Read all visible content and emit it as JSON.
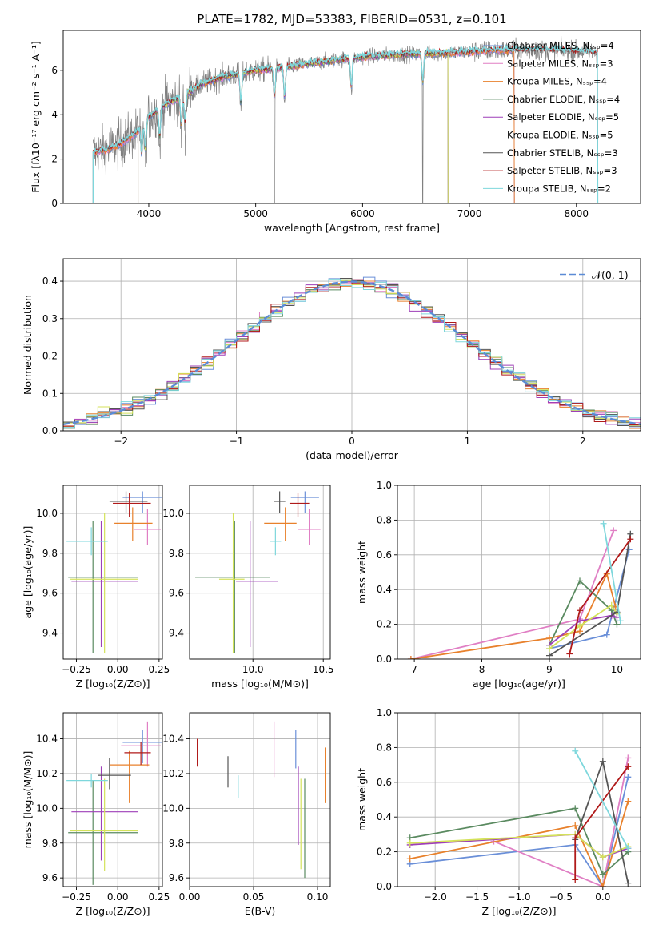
{
  "suptitle": "PLATE=1782, MJD=53383, FIBERID=0531, z=0.101",
  "colors": {
    "chabrier_miles": "#6a8fd8",
    "salpeter_miles": "#e07fc4",
    "kroupa_miles": "#e8812c",
    "chabrier_elodie": "#5a8a60",
    "salpeter_elodie": "#9e3fb8",
    "kroupa_elodie": "#d4e25a",
    "chabrier_stelib": "#555555",
    "salpeter_stelib": "#b01a1a",
    "kroupa_stelib": "#7ed7dc",
    "observed": "#808080",
    "normal_curve": "#5b8bd6",
    "grid": "#b0b0b0"
  },
  "chart_data": [
    {
      "id": "spectrum",
      "type": "line",
      "xlabel": "wavelength [Angstrom, rest frame]",
      "ylabel": "Flux [fλ10⁻¹⁷ erg cm⁻² s⁻¹ A⁻¹]",
      "xlim": [
        3200,
        8600
      ],
      "ylim": [
        0,
        7.8
      ],
      "xticks": [
        4000,
        5000,
        6000,
        7000,
        8000
      ],
      "yticks": [
        0,
        2,
        4,
        6
      ],
      "grid": false,
      "legend_position": "upper right",
      "legend": [
        "Chabrier MILES, Nₛₛₚ=4",
        "Salpeter MILES, Nₛₛₚ=3",
        "Kroupa MILES, Nₛₛₚ=4",
        "Chabrier ELODIE, Nₛₛₚ=4",
        "Salpeter ELODIE, Nₛₛₚ=5",
        "Kroupa ELODIE, Nₛₛₚ=5",
        "Chabrier STELIB, Nₛₛₚ=3",
        "Salpeter STELIB, Nₛₛₚ=3",
        "Kroupa STELIB, Nₛₛₚ=2"
      ],
      "continuum": [
        [
          3480,
          2.3
        ],
        [
          3600,
          2.4
        ],
        [
          3700,
          2.6
        ],
        [
          3800,
          2.9
        ],
        [
          3900,
          3.3
        ],
        [
          4000,
          3.9
        ],
        [
          4100,
          4.3
        ],
        [
          4200,
          4.6
        ],
        [
          4300,
          4.8
        ],
        [
          4400,
          5.1
        ],
        [
          4500,
          5.4
        ],
        [
          4700,
          5.7
        ],
        [
          4900,
          5.9
        ],
        [
          5000,
          6.0
        ],
        [
          5200,
          6.1
        ],
        [
          5500,
          6.3
        ],
        [
          5800,
          6.5
        ],
        [
          6000,
          6.6
        ],
        [
          6300,
          6.7
        ],
        [
          6600,
          6.75
        ],
        [
          6900,
          6.8
        ],
        [
          7200,
          6.9
        ],
        [
          7500,
          6.9
        ],
        [
          7800,
          6.9
        ],
        [
          8000,
          6.85
        ],
        [
          8200,
          6.8
        ]
      ],
      "model_ranges": {
        "chabrier_miles": [
          3480,
          7420
        ],
        "salpeter_miles": [
          3480,
          7420
        ],
        "kroupa_miles": [
          3480,
          7420
        ],
        "chabrier_elodie": [
          3900,
          6800
        ],
        "salpeter_elodie": [
          3900,
          6800
        ],
        "kroupa_elodie": [
          3900,
          6800
        ],
        "chabrier_stelib": [
          3480,
          8200
        ],
        "salpeter_stelib": [
          3480,
          8200
        ],
        "kroupa_stelib": [
          3480,
          8200
        ]
      },
      "absorption_lines": [
        3934,
        3969,
        4102,
        4305,
        4340,
        4861,
        5175,
        5270,
        5895,
        6563
      ]
    },
    {
      "id": "residual-histogram",
      "type": "histogram",
      "xlabel": "(data-model)/error",
      "ylabel": "Normed distribution",
      "xlim": [
        -2.5,
        2.5
      ],
      "ylim": [
        0,
        0.46
      ],
      "xticks": [
        -2,
        -1,
        0,
        1,
        2
      ],
      "yticks": [
        0.0,
        0.1,
        0.2,
        0.3,
        0.4
      ],
      "grid": true,
      "legend_position": "upper right",
      "legend_label": "𝒩(0, 1)",
      "bin_width": 0.1
    },
    {
      "id": "age-vs-Z",
      "type": "errorbar",
      "xlabel": "Z [log₁₀(Z/Z⊙)]",
      "ylabel": "age  [log₁₀(age/yr)]",
      "xlim": [
        -0.33,
        0.27
      ],
      "ylim": [
        9.27,
        10.14
      ],
      "xticks": [
        -0.25,
        0.0,
        0.25
      ],
      "yticks": [
        9.4,
        9.6,
        9.8,
        10.0
      ],
      "grid": true,
      "points": [
        {
          "model": "chabrier_miles",
          "x": 0.15,
          "y": 10.08,
          "xerr": [
            0.12,
            0.12
          ],
          "yerr": [
            0.08,
            0.03
          ]
        },
        {
          "model": "salpeter_miles",
          "x": 0.18,
          "y": 9.92,
          "xerr": [
            0.08,
            0.08
          ],
          "yerr": [
            0.08,
            0.1
          ]
        },
        {
          "model": "kroupa_miles",
          "x": 0.09,
          "y": 9.95,
          "xerr": [
            0.11,
            0.12
          ],
          "yerr": [
            0.09,
            0.08
          ]
        },
        {
          "model": "chabrier_elodie",
          "x": -0.15,
          "y": 9.68,
          "xerr": [
            0.15,
            0.27
          ],
          "yerr": [
            0.38,
            0.28
          ]
        },
        {
          "model": "salpeter_elodie",
          "x": -0.1,
          "y": 9.66,
          "xerr": [
            0.18,
            0.22
          ],
          "yerr": [
            0.33,
            0.3
          ]
        },
        {
          "model": "kroupa_elodie",
          "x": -0.08,
          "y": 9.67,
          "xerr": [
            0.21,
            0.2
          ],
          "yerr": [
            0.37,
            0.33
          ]
        },
        {
          "model": "chabrier_stelib",
          "x": 0.05,
          "y": 10.06,
          "xerr": [
            0.1,
            0.13
          ],
          "yerr": [
            0.06,
            0.05
          ]
        },
        {
          "model": "salpeter_stelib",
          "x": 0.07,
          "y": 10.05,
          "xerr": [
            0.1,
            0.13
          ],
          "yerr": [
            0.07,
            0.05
          ]
        },
        {
          "model": "kroupa_stelib",
          "x": -0.16,
          "y": 9.86,
          "xerr": [
            0.15,
            0.1
          ],
          "yerr": [
            0.07,
            0.07
          ]
        }
      ]
    },
    {
      "id": "age-vs-mass",
      "type": "errorbar",
      "xlabel": "mass [log₁₀(M/M⊙)]",
      "ylabel": "",
      "xlim": [
        9.55,
        10.55
      ],
      "ylim": [
        9.27,
        10.14
      ],
      "xticks": [
        10.0,
        10.5
      ],
      "yticks": [
        9.4,
        9.6,
        9.8,
        10.0
      ],
      "grid": true,
      "points": [
        {
          "model": "chabrier_miles",
          "x": 10.37,
          "y": 10.08,
          "xerr": [
            0.1,
            0.1
          ],
          "yerr": [
            0.08,
            0.03
          ]
        },
        {
          "model": "salpeter_miles",
          "x": 10.4,
          "y": 9.92,
          "xerr": [
            0.08,
            0.08
          ],
          "yerr": [
            0.08,
            0.1
          ]
        },
        {
          "model": "kroupa_miles",
          "x": 10.23,
          "y": 9.95,
          "xerr": [
            0.15,
            0.08
          ],
          "yerr": [
            0.09,
            0.08
          ]
        },
        {
          "model": "chabrier_elodie",
          "x": 9.87,
          "y": 9.68,
          "xerr": [
            0.28,
            0.25
          ],
          "yerr": [
            0.38,
            0.28
          ]
        },
        {
          "model": "salpeter_elodie",
          "x": 9.98,
          "y": 9.66,
          "xerr": [
            0.1,
            0.2
          ],
          "yerr": [
            0.33,
            0.3
          ]
        },
        {
          "model": "kroupa_elodie",
          "x": 9.86,
          "y": 9.67,
          "xerr": [
            0.1,
            0.08
          ],
          "yerr": [
            0.37,
            0.33
          ]
        },
        {
          "model": "chabrier_stelib",
          "x": 10.19,
          "y": 10.06,
          "xerr": [
            0.04,
            0.04
          ],
          "yerr": [
            0.06,
            0.05
          ]
        },
        {
          "model": "salpeter_stelib",
          "x": 10.32,
          "y": 10.05,
          "xerr": [
            0.06,
            0.08
          ],
          "yerr": [
            0.07,
            0.05
          ]
        },
        {
          "model": "kroupa_stelib",
          "x": 10.16,
          "y": 9.86,
          "xerr": [
            0.04,
            0.04
          ],
          "yerr": [
            0.07,
            0.07
          ]
        }
      ]
    },
    {
      "id": "mass-weight-vs-age",
      "type": "line",
      "xlabel": "age  [log₁₀(age/yr)]",
      "ylabel": "mass weight",
      "xlim": [
        6.75,
        10.35
      ],
      "ylim": [
        0,
        1.0
      ],
      "xticks": [
        7,
        8,
        9,
        10
      ],
      "yticks": [
        0.0,
        0.2,
        0.4,
        0.6,
        0.8,
        1.0
      ],
      "grid": true,
      "series": [
        {
          "model": "chabrier_miles",
          "x": [
            9.0,
            9.85,
            10.18
          ],
          "y": [
            0.06,
            0.14,
            0.63
          ]
        },
        {
          "model": "salpeter_miles",
          "x": [
            6.95,
            9.45,
            9.95
          ],
          "y": [
            0.0,
            0.23,
            0.74
          ]
        },
        {
          "model": "kroupa_miles",
          "x": [
            6.95,
            9.0,
            9.45,
            9.85,
            9.98
          ],
          "y": [
            0.0,
            0.12,
            0.16,
            0.49,
            0.3
          ]
        },
        {
          "model": "chabrier_elodie",
          "x": [
            9.0,
            9.45,
            9.92,
            10.0
          ],
          "y": [
            0.08,
            0.45,
            0.28,
            0.2
          ]
        },
        {
          "model": "salpeter_elodie",
          "x": [
            9.0,
            9.45,
            9.92,
            10.0
          ],
          "y": [
            0.08,
            0.22,
            0.25,
            0.24
          ]
        },
        {
          "model": "kroupa_elodie",
          "x": [
            9.0,
            9.45,
            9.92,
            10.0
          ],
          "y": [
            0.06,
            0.19,
            0.31,
            0.26
          ]
        },
        {
          "model": "chabrier_stelib",
          "x": [
            9.0,
            10.0,
            10.2
          ],
          "y": [
            0.02,
            0.27,
            0.72
          ]
        },
        {
          "model": "salpeter_stelib",
          "x": [
            9.3,
            9.45,
            10.2
          ],
          "y": [
            0.03,
            0.28,
            0.69
          ]
        },
        {
          "model": "kroupa_stelib",
          "x": [
            9.8,
            10.05
          ],
          "y": [
            0.78,
            0.22
          ]
        }
      ]
    },
    {
      "id": "mass-vs-Z",
      "type": "errorbar",
      "xlabel": "Z [log₁₀(Z/Z⊙)]",
      "ylabel": "mass [log₁₀(M/M⊙)]",
      "xlim": [
        -0.33,
        0.27
      ],
      "ylim": [
        9.55,
        10.55
      ],
      "xticks": [
        -0.25,
        0.0,
        0.25
      ],
      "yticks": [
        9.6,
        9.8,
        10.0,
        10.2,
        10.4
      ],
      "grid": true,
      "points": [
        {
          "model": "chabrier_miles",
          "x": 0.15,
          "y": 10.38,
          "xerr": [
            0.12,
            0.12
          ],
          "yerr": [
            0.12,
            0.07
          ]
        },
        {
          "model": "salpeter_miles",
          "x": 0.18,
          "y": 10.36,
          "xerr": [
            0.16,
            0.08
          ],
          "yerr": [
            0.12,
            0.14
          ]
        },
        {
          "model": "kroupa_miles",
          "x": 0.07,
          "y": 10.25,
          "xerr": [
            0.12,
            0.12
          ],
          "yerr": [
            0.22,
            0.08
          ]
        },
        {
          "model": "chabrier_elodie",
          "x": -0.15,
          "y": 9.86,
          "xerr": [
            0.15,
            0.27
          ],
          "yerr": [
            0.3,
            0.3
          ]
        },
        {
          "model": "salpeter_elodie",
          "x": -0.1,
          "y": 9.98,
          "xerr": [
            0.18,
            0.22
          ],
          "yerr": [
            0.28,
            0.26
          ]
        },
        {
          "model": "kroupa_elodie",
          "x": -0.08,
          "y": 9.87,
          "xerr": [
            0.21,
            0.2
          ],
          "yerr": [
            0.23,
            0.3
          ]
        },
        {
          "model": "chabrier_stelib",
          "x": -0.05,
          "y": 10.19,
          "xerr": [
            0.07,
            0.13
          ],
          "yerr": [
            0.08,
            0.1
          ]
        },
        {
          "model": "salpeter_stelib",
          "x": 0.14,
          "y": 10.32,
          "xerr": [
            0.1,
            0.06
          ],
          "yerr": [
            0.07,
            0.06
          ]
        },
        {
          "model": "kroupa_stelib",
          "x": -0.16,
          "y": 10.16,
          "xerr": [
            0.15,
            0.1
          ],
          "yerr": [
            0.04,
            0.04
          ]
        }
      ]
    },
    {
      "id": "mass-vs-ebv",
      "type": "errorbar",
      "xlabel": "E(B-V)",
      "ylabel": "",
      "xlim": [
        0.0,
        0.11
      ],
      "ylim": [
        9.55,
        10.55
      ],
      "xticks": [
        0.0,
        0.05,
        0.1
      ],
      "yticks": [
        9.6,
        9.8,
        10.0,
        10.2,
        10.4
      ],
      "grid": true,
      "points": [
        {
          "model": "salpeter_stelib",
          "x": 0.006,
          "y": 10.32,
          "yerr": [
            0.08,
            0.08
          ]
        },
        {
          "model": "chabrier_stelib",
          "x": 0.03,
          "y": 10.2,
          "yerr": [
            0.08,
            0.1
          ]
        },
        {
          "model": "kroupa_stelib",
          "x": 0.038,
          "y": 10.13,
          "yerr": [
            0.07,
            0.06
          ]
        },
        {
          "model": "salpeter_miles",
          "x": 0.066,
          "y": 10.34,
          "yerr": [
            0.16,
            0.16
          ]
        },
        {
          "model": "chabrier_miles",
          "x": 0.083,
          "y": 10.35,
          "yerr": [
            0.12,
            0.1
          ]
        },
        {
          "model": "salpeter_elodie",
          "x": 0.085,
          "y": 10.0,
          "yerr": [
            0.21,
            0.24
          ]
        },
        {
          "model": "kroupa_elodie",
          "x": 0.087,
          "y": 9.93,
          "yerr": [
            0.28,
            0.24
          ]
        },
        {
          "model": "chabrier_elodie",
          "x": 0.09,
          "y": 9.98,
          "yerr": [
            0.38,
            0.19
          ]
        },
        {
          "model": "kroupa_miles",
          "x": 0.106,
          "y": 10.19,
          "yerr": [
            0.16,
            0.16
          ]
        }
      ]
    },
    {
      "id": "mass-weight-vs-Z",
      "type": "line",
      "xlabel": "Z [log₁₀(Z/Z⊙)]",
      "ylabel": "mass weight",
      "xlim": [
        -2.45,
        0.45
      ],
      "ylim": [
        0,
        1.0
      ],
      "xticks": [
        -2.0,
        -1.5,
        -1.0,
        -0.5,
        0.0
      ],
      "yticks": [
        0.0,
        0.2,
        0.4,
        0.6,
        0.8,
        1.0
      ],
      "grid": true,
      "series": [
        {
          "model": "chabrier_miles",
          "x": [
            -2.3,
            -0.33,
            0.0,
            0.3
          ],
          "y": [
            0.13,
            0.24,
            0.0,
            0.63
          ]
        },
        {
          "model": "salpeter_miles",
          "x": [
            -1.3,
            0.0,
            0.3
          ],
          "y": [
            0.26,
            0.0,
            0.74
          ]
        },
        {
          "model": "kroupa_miles",
          "x": [
            -2.3,
            -0.33,
            0.0,
            0.3
          ],
          "y": [
            0.16,
            0.35,
            0.0,
            0.49
          ]
        },
        {
          "model": "chabrier_elodie",
          "x": [
            -2.3,
            -0.33,
            0.0,
            0.3
          ],
          "y": [
            0.28,
            0.45,
            0.07,
            0.2
          ]
        },
        {
          "model": "salpeter_elodie",
          "x": [
            -2.3,
            -0.33,
            0.0,
            0.3
          ],
          "y": [
            0.24,
            0.3,
            0.17,
            0.22
          ]
        },
        {
          "model": "kroupa_elodie",
          "x": [
            -2.3,
            -0.33,
            0.0,
            0.3
          ],
          "y": [
            0.25,
            0.3,
            0.17,
            0.23
          ]
        },
        {
          "model": "chabrier_stelib",
          "x": [
            -0.33,
            0.0,
            0.3
          ],
          "y": [
            0.27,
            0.72,
            0.02
          ]
        },
        {
          "model": "salpeter_stelib",
          "x": [
            -0.33,
            -0.33,
            0.3
          ],
          "y": [
            0.04,
            0.28,
            0.69
          ]
        },
        {
          "model": "kroupa_stelib",
          "x": [
            -0.33,
            0.3
          ],
          "y": [
            0.78,
            0.22
          ]
        }
      ]
    }
  ]
}
